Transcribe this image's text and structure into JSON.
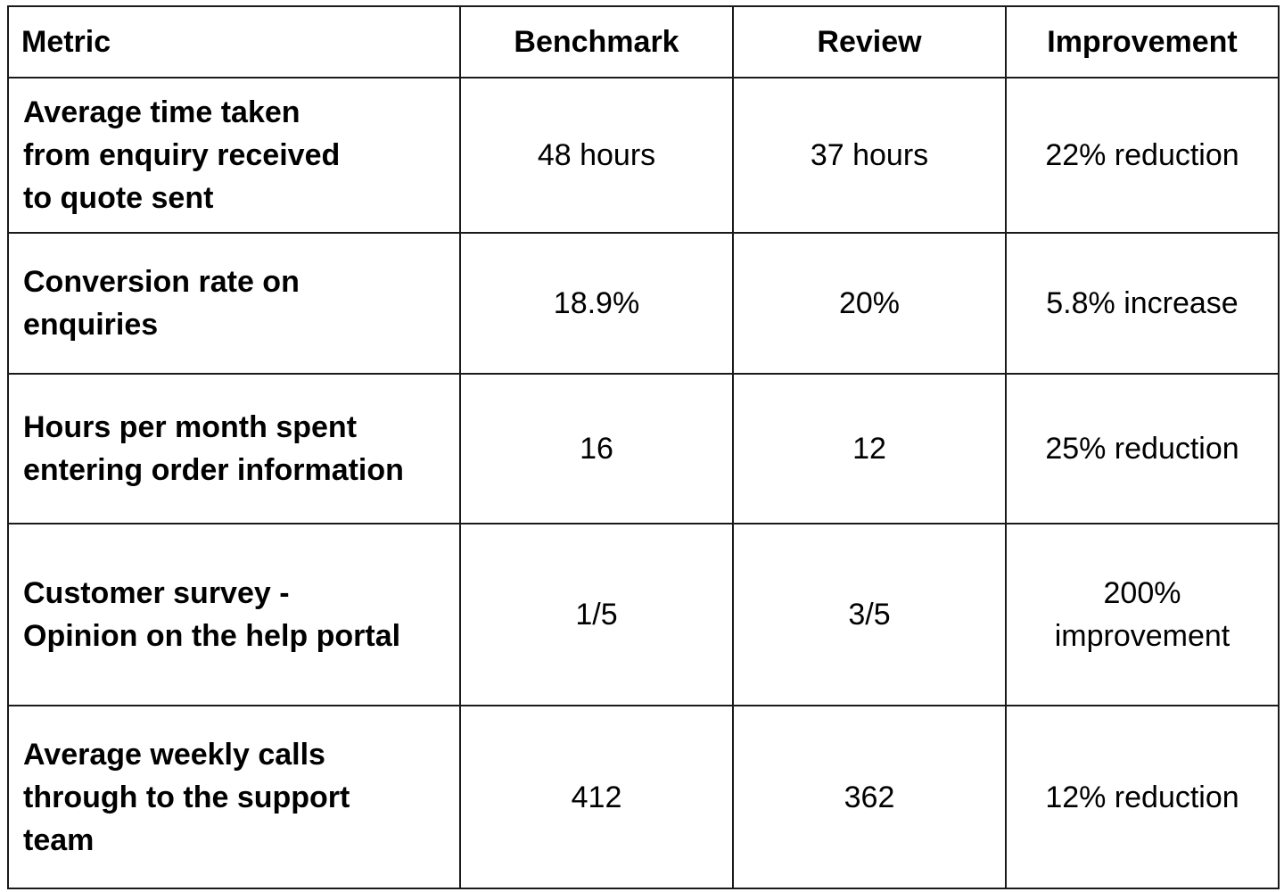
{
  "table": {
    "headers": [
      "Metric",
      "Benchmark",
      "Review",
      "Improvement"
    ],
    "rows": [
      {
        "metric_lines": [
          "Average time taken",
          "from enquiry received",
          "to quote sent"
        ],
        "benchmark": "48 hours",
        "review": "37 hours",
        "improvement": "22% reduction"
      },
      {
        "metric_lines": [
          "Conversion rate on",
          "enquiries"
        ],
        "benchmark": "18.9%",
        "review": "20%",
        "improvement": "5.8% increase"
      },
      {
        "metric_lines": [
          "Hours per month spent",
          "entering order information"
        ],
        "benchmark": "16",
        "review": "12",
        "improvement": "25% reduction"
      },
      {
        "metric_lines": [
          "Customer survey -",
          "Opinion on the help portal"
        ],
        "benchmark": "1/5",
        "review": "3/5",
        "improvement_lines": [
          "200%",
          "improvement"
        ]
      },
      {
        "metric_lines": [
          "Average weekly calls",
          "through to the support",
          "team"
        ],
        "benchmark": "412",
        "review": "362",
        "improvement": "12% reduction"
      }
    ]
  }
}
